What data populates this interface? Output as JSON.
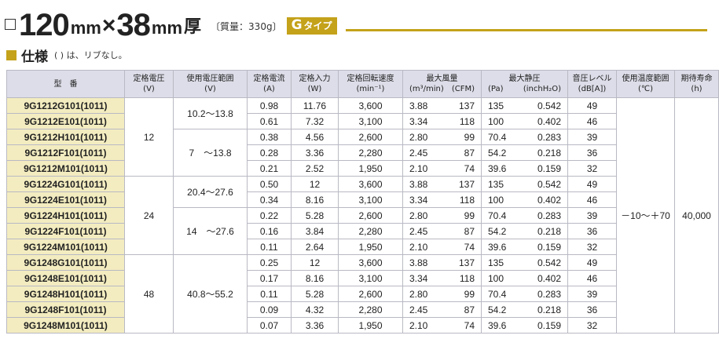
{
  "header": {
    "size_number_1": "120",
    "size_unit_1": "mm",
    "times": "×",
    "size_number_2": "38",
    "size_unit_2": "mm",
    "thickness": "厚",
    "mass": "〔質量：330g〕",
    "type_letter": "G",
    "type_suffix": "タイプ",
    "accent_color": "#c4a21a"
  },
  "spec": {
    "title": "仕様",
    "note": "( ) は、リブなし。"
  },
  "table": {
    "headers": {
      "model": "型　番",
      "rated_voltage": "定格電圧",
      "rated_voltage_unit": "(V)",
      "voltage_range": "使用電圧範囲",
      "voltage_range_unit": "(V)",
      "rated_current": "定格電流",
      "rated_current_unit": "(A)",
      "rated_input": "定格入力",
      "rated_input_unit": "(W)",
      "rated_speed": "定格回転速度",
      "rated_speed_unit": "(min⁻¹)",
      "max_airflow": "最大風量",
      "max_airflow_unit_a": "(m³/min)",
      "max_airflow_unit_b": "(CFM)",
      "max_static": "最大静圧",
      "max_static_unit_a": "(Pa)",
      "max_static_unit_b": "(inchH₂O)",
      "noise": "音圧レベル",
      "noise_unit": "(dB[A])",
      "temp_range": "使用温度範囲",
      "temp_range_unit": "(℃)",
      "life": "期待寿命",
      "life_unit": "(h)"
    },
    "groups": [
      {
        "rated_voltage": "12",
        "ranges": [
          "10.2～13.8",
          "7　～13.8"
        ],
        "rows": [
          {
            "model": "9G1212G101(1011)",
            "current": "0.98",
            "input": "11.76",
            "speed": "3,600",
            "airflow_m3": "3.88",
            "airflow_cfm": "137",
            "static_pa": "135",
            "static_inch": "0.542",
            "noise": "49"
          },
          {
            "model": "9G1212E101(1011)",
            "current": "0.61",
            "input": "7.32",
            "speed": "3,100",
            "airflow_m3": "3.34",
            "airflow_cfm": "118",
            "static_pa": "100",
            "static_inch": "0.402",
            "noise": "46"
          },
          {
            "model": "9G1212H101(1011)",
            "current": "0.38",
            "input": "4.56",
            "speed": "2,600",
            "airflow_m3": "2.80",
            "airflow_cfm": "99",
            "static_pa": "70.4",
            "static_inch": "0.283",
            "noise": "39"
          },
          {
            "model": "9G1212F101(1011)",
            "current": "0.28",
            "input": "3.36",
            "speed": "2,280",
            "airflow_m3": "2.45",
            "airflow_cfm": "87",
            "static_pa": "54.2",
            "static_inch": "0.218",
            "noise": "36"
          },
          {
            "model": "9G1212M101(1011)",
            "current": "0.21",
            "input": "2.52",
            "speed": "1,950",
            "airflow_m3": "2.10",
            "airflow_cfm": "74",
            "static_pa": "39.6",
            "static_inch": "0.159",
            "noise": "32"
          }
        ]
      },
      {
        "rated_voltage": "24",
        "ranges": [
          "20.4～27.6",
          "14　～27.6"
        ],
        "rows": [
          {
            "model": "9G1224G101(1011)",
            "current": "0.50",
            "input": "12",
            "speed": "3,600",
            "airflow_m3": "3.88",
            "airflow_cfm": "137",
            "static_pa": "135",
            "static_inch": "0.542",
            "noise": "49"
          },
          {
            "model": "9G1224E101(1011)",
            "current": "0.34",
            "input": "8.16",
            "speed": "3,100",
            "airflow_m3": "3.34",
            "airflow_cfm": "118",
            "static_pa": "100",
            "static_inch": "0.402",
            "noise": "46"
          },
          {
            "model": "9G1224H101(1011)",
            "current": "0.22",
            "input": "5.28",
            "speed": "2,600",
            "airflow_m3": "2.80",
            "airflow_cfm": "99",
            "static_pa": "70.4",
            "static_inch": "0.283",
            "noise": "39"
          },
          {
            "model": "9G1224F101(1011)",
            "current": "0.16",
            "input": "3.84",
            "speed": "2,280",
            "airflow_m3": "2.45",
            "airflow_cfm": "87",
            "static_pa": "54.2",
            "static_inch": "0.218",
            "noise": "36"
          },
          {
            "model": "9G1224M101(1011)",
            "current": "0.11",
            "input": "2.64",
            "speed": "1,950",
            "airflow_m3": "2.10",
            "airflow_cfm": "74",
            "static_pa": "39.6",
            "static_inch": "0.159",
            "noise": "32"
          }
        ]
      },
      {
        "rated_voltage": "48",
        "ranges": [
          "40.8～55.2"
        ],
        "rows": [
          {
            "model": "9G1248G101(1011)",
            "current": "0.25",
            "input": "12",
            "speed": "3,600",
            "airflow_m3": "3.88",
            "airflow_cfm": "137",
            "static_pa": "135",
            "static_inch": "0.542",
            "noise": "49"
          },
          {
            "model": "9G1248E101(1011)",
            "current": "0.17",
            "input": "8.16",
            "speed": "3,100",
            "airflow_m3": "3.34",
            "airflow_cfm": "118",
            "static_pa": "100",
            "static_inch": "0.402",
            "noise": "46"
          },
          {
            "model": "9G1248H101(1011)",
            "current": "0.11",
            "input": "5.28",
            "speed": "2,600",
            "airflow_m3": "2.80",
            "airflow_cfm": "99",
            "static_pa": "70.4",
            "static_inch": "0.283",
            "noise": "39"
          },
          {
            "model": "9G1248F101(1011)",
            "current": "0.09",
            "input": "4.32",
            "speed": "2,280",
            "airflow_m3": "2.45",
            "airflow_cfm": "87",
            "static_pa": "54.2",
            "static_inch": "0.218",
            "noise": "36"
          },
          {
            "model": "9G1248M101(1011)",
            "current": "0.07",
            "input": "3.36",
            "speed": "1,950",
            "airflow_m3": "2.10",
            "airflow_cfm": "74",
            "static_pa": "39.6",
            "static_inch": "0.159",
            "noise": "32"
          }
        ]
      }
    ],
    "temp_range": "－10～＋70",
    "life": "40,000"
  }
}
